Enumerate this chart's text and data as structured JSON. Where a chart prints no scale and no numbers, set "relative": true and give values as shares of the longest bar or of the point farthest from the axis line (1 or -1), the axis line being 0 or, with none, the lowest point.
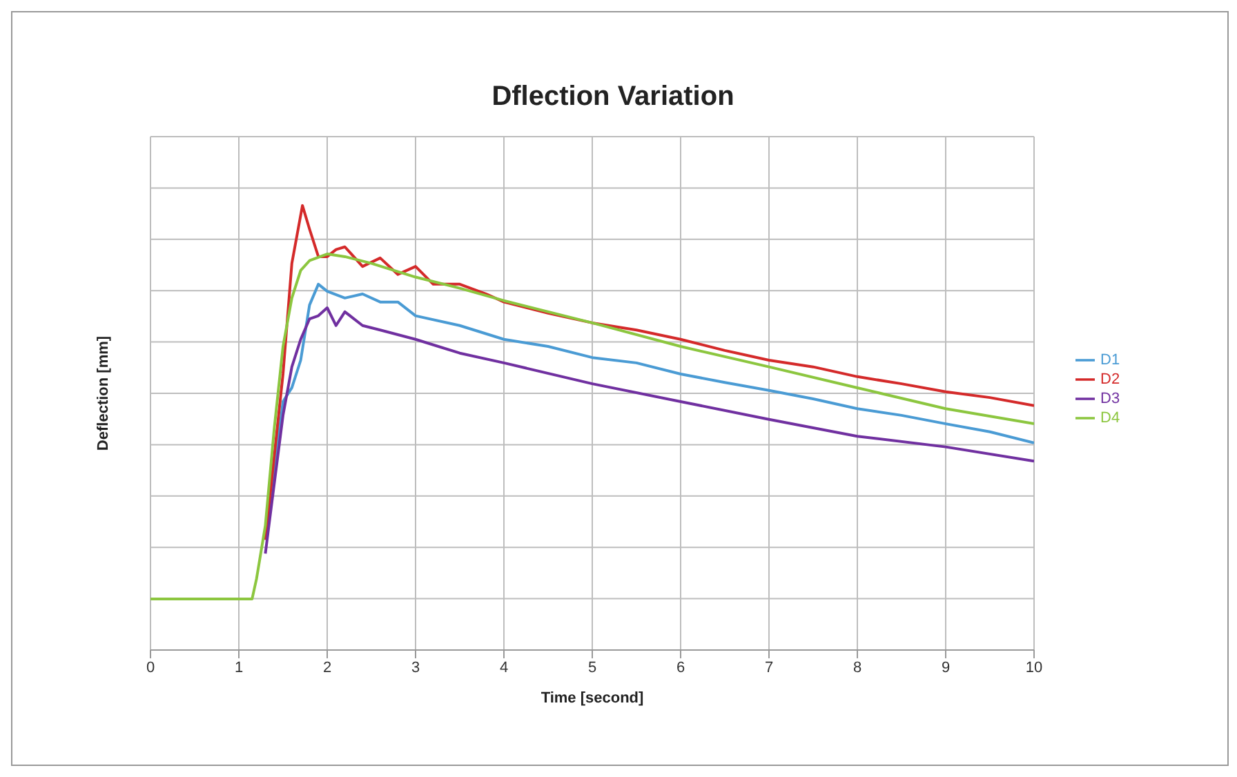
{
  "chart_data": {
    "type": "line",
    "title": "Dflection Variation",
    "xlabel": "Time [second]",
    "ylabel": "Deflection [mm]",
    "relative": true,
    "xlim": [
      0,
      10
    ],
    "xticks": [
      0,
      1,
      2,
      3,
      4,
      5,
      6,
      7,
      8,
      9,
      10
    ],
    "grid": true,
    "legend": "right",
    "marker": "none",
    "line_style": "solid",
    "series": [
      {
        "name": "D1",
        "color": "#4a9bd4",
        "x": [
          1.3,
          1.4,
          1.5,
          1.6,
          1.7,
          1.8,
          1.9,
          2.0,
          2.2,
          2.4,
          2.6,
          2.8,
          3.0,
          3.5,
          4,
          4.5,
          5,
          5.5,
          6,
          6.5,
          7,
          7.5,
          8,
          8.5,
          9,
          9.5,
          10
        ],
        "values": [
          0.248,
          0.404,
          0.559,
          0.59,
          0.652,
          0.776,
          0.823,
          0.807,
          0.792,
          0.801,
          0.783,
          0.783,
          0.752,
          0.73,
          0.699,
          0.683,
          0.658,
          0.646,
          0.621,
          0.602,
          0.584,
          0.565,
          0.543,
          0.528,
          0.509,
          0.491,
          0.466
        ]
      },
      {
        "name": "D2",
        "color": "#d42a2a",
        "x": [
          1.3,
          1.4,
          1.5,
          1.6,
          1.72,
          1.8,
          1.9,
          2.0,
          2.1,
          2.2,
          2.4,
          2.6,
          2.8,
          3.0,
          3.2,
          3.5,
          3.8,
          4,
          4.5,
          5,
          5.5,
          6,
          6.5,
          7,
          7.5,
          8,
          8.5,
          9,
          9.5,
          10
        ],
        "values": [
          0.248,
          0.435,
          0.621,
          0.87,
          1,
          0.947,
          0.885,
          0.885,
          0.901,
          0.907,
          0.863,
          0.882,
          0.845,
          0.863,
          0.823,
          0.823,
          0.801,
          0.783,
          0.758,
          0.736,
          0.72,
          0.699,
          0.674,
          0.652,
          0.637,
          0.615,
          0.599,
          0.581,
          0.568,
          0.55
        ]
      },
      {
        "name": "D3",
        "color": "#7030a0",
        "x": [
          1.3,
          1.4,
          1.5,
          1.6,
          1.7,
          1.8,
          1.9,
          2.0,
          2.1,
          2.2,
          2.4,
          2.6,
          3,
          3.5,
          4,
          5,
          6,
          7,
          8,
          9,
          10
        ],
        "values": [
          0.217,
          0.373,
          0.528,
          0.637,
          0.699,
          0.745,
          0.752,
          0.77,
          0.73,
          0.761,
          0.73,
          0.72,
          0.699,
          0.668,
          0.646,
          0.599,
          0.559,
          0.519,
          0.481,
          0.457,
          0.425
        ]
      },
      {
        "name": "D4",
        "color": "#8cc63f",
        "x": [
          0,
          1.15,
          1.2,
          1.3,
          1.4,
          1.5,
          1.6,
          1.7,
          1.8,
          2.0,
          2.2,
          2.5,
          3,
          3.5,
          4,
          5,
          6,
          7,
          8,
          9,
          10
        ],
        "values": [
          0.115,
          0.115,
          0.16,
          0.28,
          0.497,
          0.683,
          0.792,
          0.854,
          0.876,
          0.891,
          0.885,
          0.87,
          0.839,
          0.814,
          0.786,
          0.736,
          0.683,
          0.637,
          0.59,
          0.543,
          0.509
        ]
      }
    ]
  }
}
